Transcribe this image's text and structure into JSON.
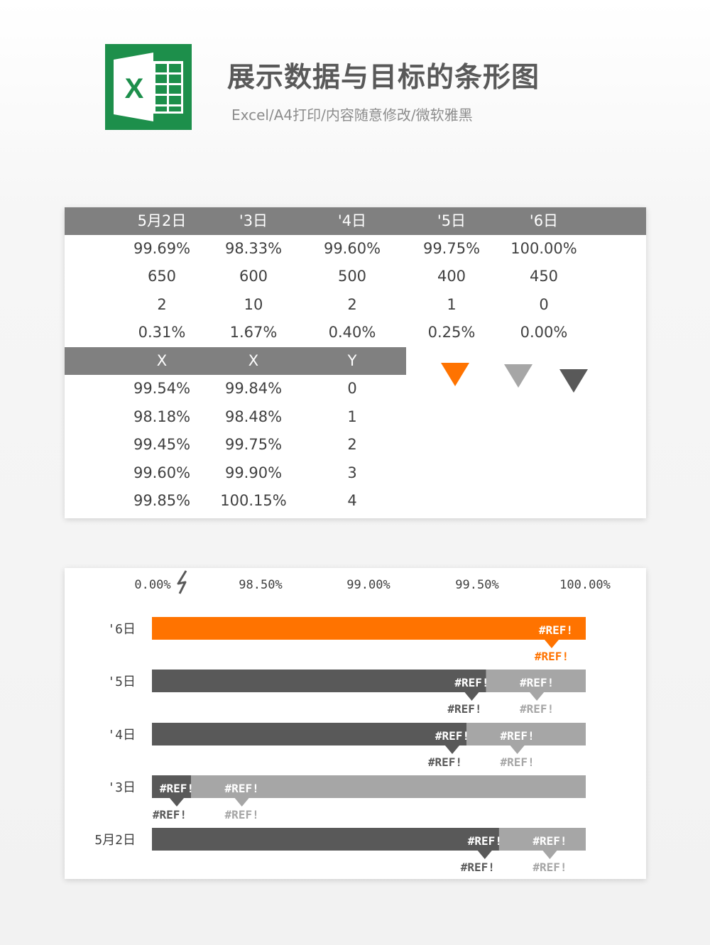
{
  "header": {
    "title": "展示数据与目标的条形图",
    "subtitle": "Excel/A4打印/内容随意修改/微软雅黑"
  },
  "colors": {
    "orange": "#ff7300",
    "dark": "#595959",
    "light": "#a6a6a6",
    "header": "#808080"
  },
  "table": {
    "columns": [
      "5月2日",
      "'3日",
      "'4日",
      "'5日",
      "'6日"
    ],
    "rows": [
      [
        "99.69%",
        "98.33%",
        "99.60%",
        "99.75%",
        "100.00%"
      ],
      [
        "650",
        "600",
        "500",
        "400",
        "450"
      ],
      [
        "2",
        "10",
        "2",
        "1",
        "0"
      ],
      [
        "0.31%",
        "1.67%",
        "0.40%",
        "0.25%",
        "0.00%"
      ]
    ],
    "sub_columns": [
      "X",
      "X",
      "Y"
    ],
    "sub_rows": [
      [
        "99.54%",
        "99.84%",
        "0"
      ],
      [
        "98.18%",
        "98.48%",
        "1"
      ],
      [
        "99.45%",
        "99.75%",
        "2"
      ],
      [
        "99.60%",
        "99.90%",
        "3"
      ],
      [
        "99.85%",
        "100.15%",
        "4"
      ]
    ],
    "legend_markers": [
      {
        "icon": "orange-down-triangle",
        "color": "#ff7300"
      },
      {
        "icon": "light-gray-down-triangle",
        "color": "#a6a6a6"
      },
      {
        "icon": "dark-gray-down-triangle",
        "color": "#595959"
      }
    ]
  },
  "chart_data": {
    "type": "bar",
    "orientation": "horizontal",
    "stacked": true,
    "axis_break": true,
    "x_tick_labels": [
      "0.00%",
      "98.50%",
      "99.00%",
      "99.50%",
      "100.00%"
    ],
    "xlim": [
      98.0,
      100.0
    ],
    "categories": [
      "'6日",
      "'5日",
      "'4日",
      "'3日",
      "5月2日"
    ],
    "series": [
      {
        "color": "#595959",
        "values": [
          null,
          99.54,
          99.45,
          98.18,
          99.6
        ]
      },
      {
        "color": "#a6a6a6",
        "values": [
          null,
          99.84,
          99.75,
          98.48,
          99.9
        ]
      },
      {
        "color": "#ff7300",
        "values": [
          100.0,
          null,
          null,
          null,
          null
        ]
      }
    ],
    "data_label": "#REF!"
  }
}
